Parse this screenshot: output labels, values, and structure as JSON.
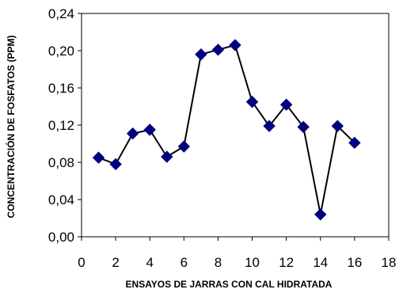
{
  "chart_data": {
    "type": "line",
    "title": "",
    "xlabel": "ENSAYOS DE JARRAS CON CAL HIDRATADA",
    "ylabel": "CONCENTRACIÓN DE FOSFATOS (PPM)",
    "xlim": [
      0,
      18
    ],
    "ylim": [
      0,
      0.24
    ],
    "x_ticks": [
      0,
      2,
      4,
      6,
      8,
      10,
      12,
      14,
      16,
      18
    ],
    "x_tick_labels": [
      "0",
      "2",
      "4",
      "6",
      "8",
      "10",
      "12",
      "14",
      "16",
      "18"
    ],
    "y_ticks": [
      0,
      0.04,
      0.08,
      0.12,
      0.16,
      0.2,
      0.24
    ],
    "y_tick_labels": [
      "0,00",
      "0,04",
      "0,08",
      "0,12",
      "0,16",
      "0,20",
      "0,24"
    ],
    "grid": false,
    "legend": "none",
    "series": [
      {
        "color": "#000080",
        "line_color": "#000000",
        "marker": "diamond",
        "x": [
          1,
          2,
          3,
          4,
          5,
          6,
          7,
          8,
          9,
          10,
          11,
          12,
          13,
          14,
          15,
          16
        ],
        "y": [
          0.085,
          0.078,
          0.111,
          0.115,
          0.086,
          0.097,
          0.196,
          0.201,
          0.206,
          0.145,
          0.119,
          0.142,
          0.118,
          0.024,
          0.119,
          0.101
        ]
      }
    ]
  }
}
